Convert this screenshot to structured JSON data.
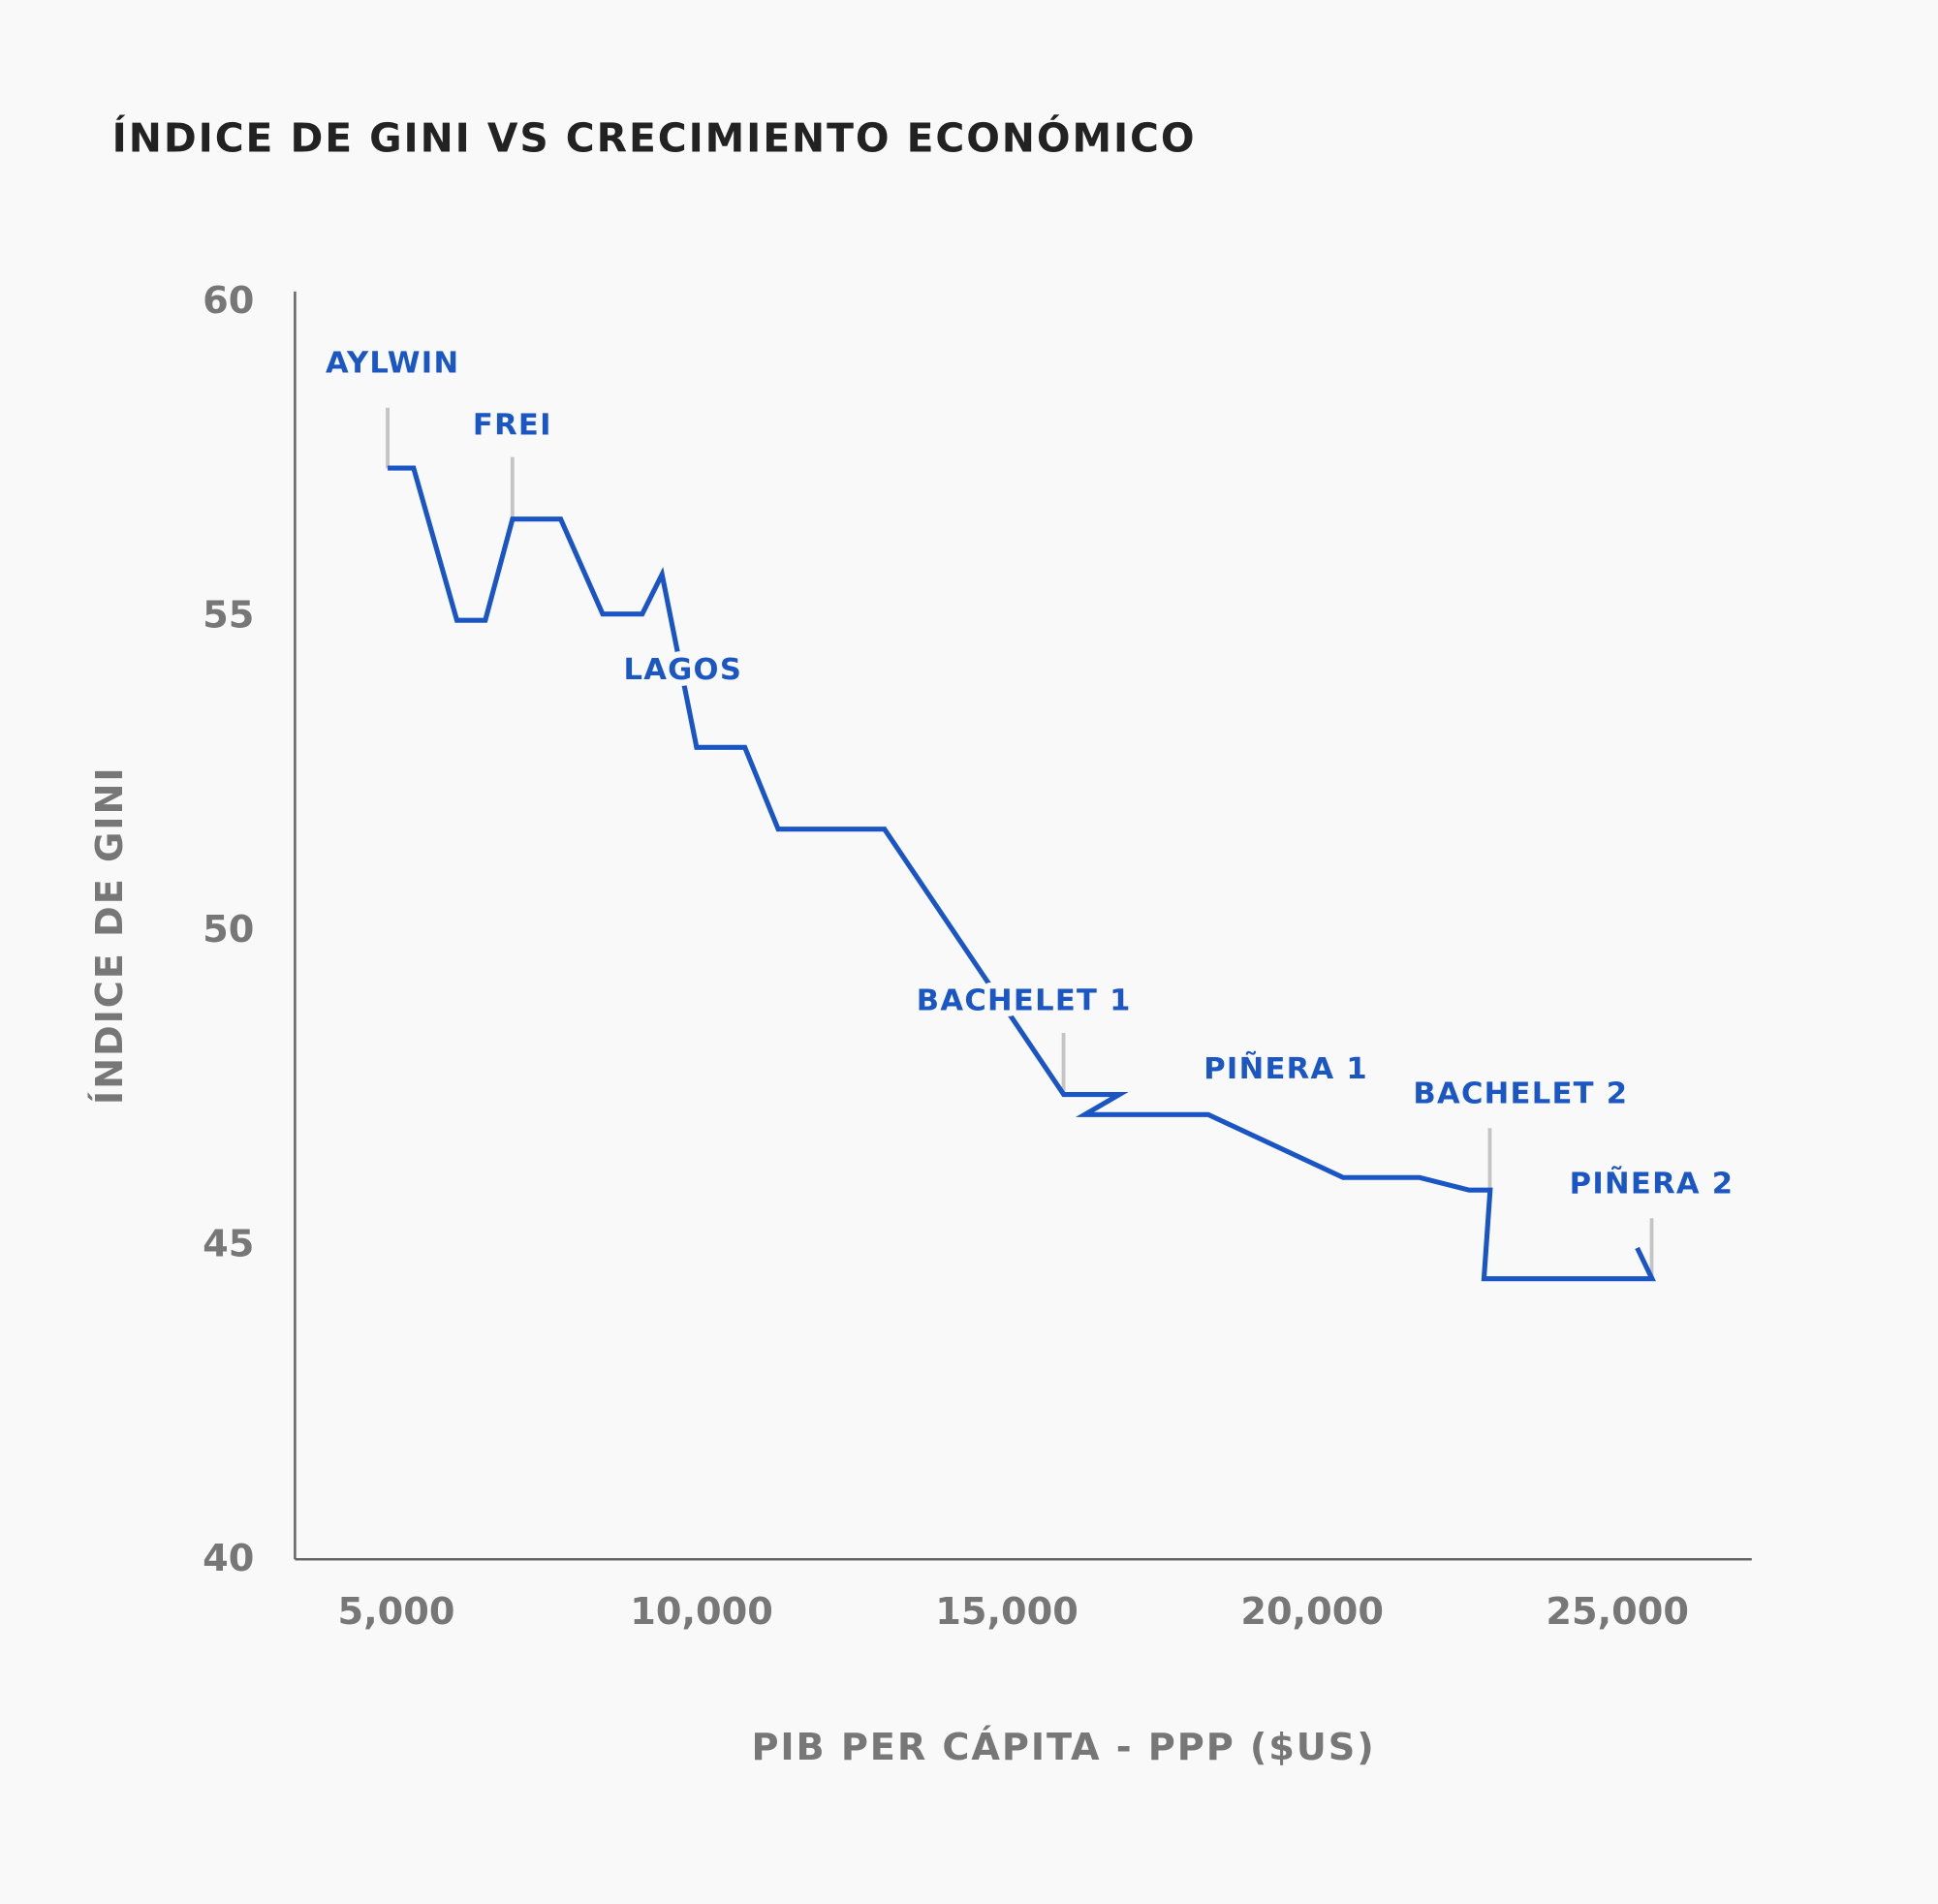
{
  "chart_data": {
    "type": "line",
    "title": "ÍNDICE DE GINI VS CRECIMIENTO ECONÓMICO",
    "x_label": "PIB PER CÁPITA - PPP ($US)",
    "y_label": "ÍNDICE DE GINI",
    "x": [
      4858,
      5283,
      5992,
      6457,
      6903,
      7692,
      8380,
      9028,
      9352,
      9918,
      10708,
      11254,
      12995,
      15931,
      16842,
      16275,
      18298,
      20506,
      21761,
      22571,
      22915,
      22814,
      25567,
      25324
    ],
    "values": [
      57.37,
      57.37,
      54.95,
      54.95,
      56.56,
      56.56,
      55.05,
      55.05,
      55.68,
      52.93,
      52.93,
      51.63,
      51.63,
      47.41,
      47.41,
      47.09,
      47.09,
      46.09,
      46.09,
      45.89,
      45.89,
      44.48,
      44.48,
      44.97
    ],
    "color": "#1a55c5",
    "xlim": [
      3340,
      27200
    ],
    "ylim": [
      40,
      60
    ],
    "xticks": [
      {
        "value": 5000,
        "label": "5,000"
      },
      {
        "value": 10000,
        "label": "10,000"
      },
      {
        "value": 15000,
        "label": "15,000"
      },
      {
        "value": 20000,
        "label": "20,000"
      },
      {
        "value": 25000,
        "label": "25,000"
      }
    ],
    "yticks": [
      40,
      45,
      50,
      55,
      60
    ],
    "annotations": [
      "AYLWIN",
      "FREI",
      "LAGOS",
      "BACHELET 1",
      "PIÑERA 1",
      "BACHELET 2",
      "PIÑERA 2"
    ]
  }
}
